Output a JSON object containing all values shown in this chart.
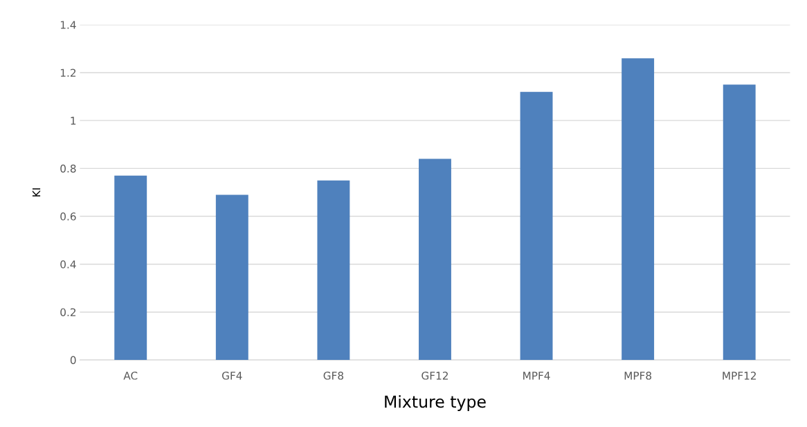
{
  "chart_data": {
    "type": "bar",
    "xlabel": "Mixture type",
    "ylabel": "KI",
    "categories": [
      "AC",
      "GF4",
      "GF8",
      "GF12",
      "MPF4",
      "MPF8",
      "MPF12"
    ],
    "values": [
      0.77,
      0.69,
      0.75,
      0.84,
      1.12,
      1.26,
      1.15
    ],
    "color": "#4f81bd",
    "ylim": [
      0,
      1.4
    ],
    "yticks": [
      0,
      0.2,
      0.4,
      0.6,
      0.8,
      1,
      1.2,
      1.4
    ],
    "grid": "y",
    "legend": false
  }
}
